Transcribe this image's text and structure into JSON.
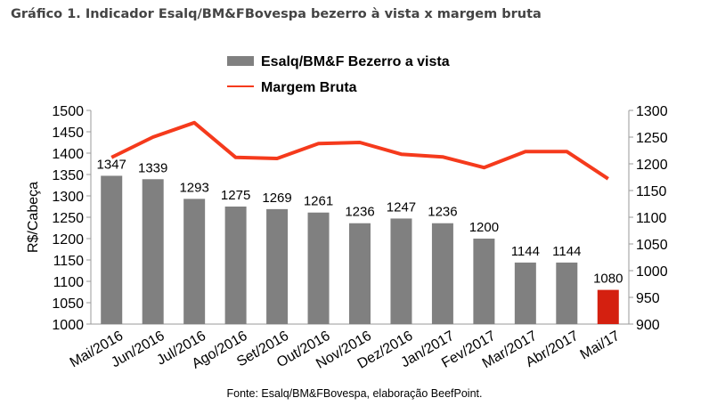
{
  "page_title": "Gráfico 1. Indicador Esalq/BM&FBovespa bezerro à vista x margem bruta",
  "chart_data": {
    "type": "bar+line",
    "categories": [
      "Mai/2016",
      "Jun/2016",
      "Jul/2016",
      "Ago/2016",
      "Set/2016",
      "Out/2016",
      "Nov/2016",
      "Dez/2016",
      "Jan/2017",
      "Fev/2017",
      "Mar/2017",
      "Abr/2017",
      "Mai/17"
    ],
    "series": [
      {
        "name": "Esalq/BM&F Bezerro a vista",
        "type": "bar",
        "axis": "left",
        "color": "#808080",
        "highlight_last_color": "#d42010",
        "values": [
          1347,
          1339,
          1293,
          1275,
          1269,
          1261,
          1236,
          1247,
          1236,
          1200,
          1144,
          1144,
          1080
        ]
      },
      {
        "name": "Margem Bruta",
        "type": "line",
        "axis": "right",
        "color": "#f53a1c",
        "values": [
          1212,
          1250,
          1277,
          1212,
          1210,
          1238,
          1240,
          1218,
          1213,
          1193,
          1223,
          1223,
          1172
        ]
      }
    ],
    "ylabel": "R$/Cabeça",
    "ylim": [
      1000,
      1500
    ],
    "yticks": [
      1000,
      1050,
      1100,
      1150,
      1200,
      1250,
      1300,
      1350,
      1400,
      1450,
      1500
    ],
    "y2lim": [
      900,
      1300
    ],
    "y2ticks": [
      900,
      950,
      1000,
      1050,
      1100,
      1150,
      1200,
      1250,
      1300
    ],
    "legend_placement": "top-center",
    "source": "Fonte: Esalq/BM&FBovespa, elaboração BeefPoint.",
    "grid": false
  }
}
